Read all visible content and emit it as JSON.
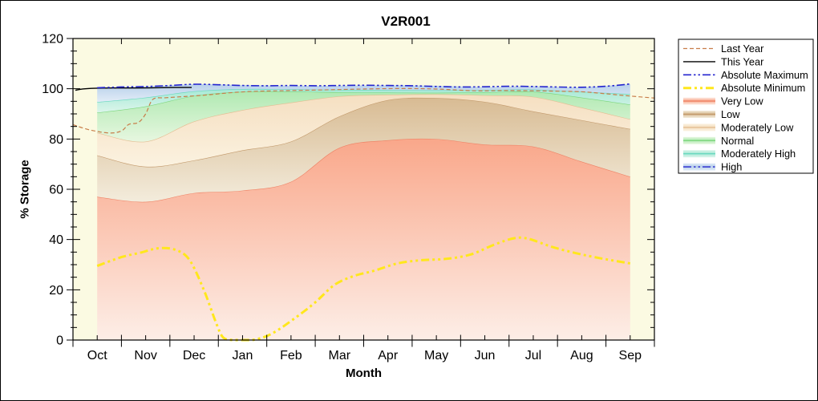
{
  "figure": {
    "title": "V2R001"
  },
  "axes": {
    "x_label": "Month",
    "y_label": "% Storage",
    "months": [
      "Oct",
      "Nov",
      "Dec",
      "Jan",
      "Feb",
      "Mar",
      "Apr",
      "May",
      "Jun",
      "Jul",
      "Aug",
      "Sep"
    ],
    "y_ticks": [
      0,
      20,
      40,
      60,
      80,
      100,
      120
    ],
    "y_minor_step": 5,
    "y_range": [
      0,
      120
    ],
    "plot_background": "#fbfae2"
  },
  "legend": {
    "items": [
      {
        "label": "Last Year",
        "kind": "line",
        "ref": "last_year"
      },
      {
        "label": "This Year",
        "kind": "line",
        "ref": "this_year"
      },
      {
        "label": "Absolute Maximum",
        "kind": "line",
        "ref": "abs_max"
      },
      {
        "label": "Absolute Minimum",
        "kind": "line",
        "ref": "abs_min"
      },
      {
        "label": "Very Low",
        "kind": "band",
        "ref": "very_low"
      },
      {
        "label": "Low",
        "kind": "band",
        "ref": "low"
      },
      {
        "label": "Moderately Low",
        "kind": "band",
        "ref": "mod_low"
      },
      {
        "label": "Normal",
        "kind": "band",
        "ref": "normal"
      },
      {
        "label": "Moderately High",
        "kind": "band",
        "ref": "mod_high"
      },
      {
        "label": "High",
        "kind": "band",
        "ref": "high"
      }
    ]
  },
  "chart_data": {
    "type": "area",
    "title": "V2R001",
    "xlabel": "Month",
    "ylabel": "% Storage",
    "x_categories": [
      "Oct",
      "Nov",
      "Dec",
      "Jan",
      "Feb",
      "Mar",
      "Apr",
      "May",
      "Jun",
      "Jul",
      "Aug",
      "Sep"
    ],
    "ylim": [
      0,
      120
    ],
    "grid": false,
    "legend_position": "outside-right",
    "bands_note": "stacked percentile zones; values are the TOP of each zone (% storage) at each month center, zones span Oct..Sep",
    "bands": [
      {
        "id": "very_low",
        "label": "Very Low",
        "line_color": "#ee8366",
        "fill_color": "#f9a78a",
        "fade_color": "#fdeee7",
        "values": [
          57,
          55,
          58.5,
          59.5,
          63,
          76.5,
          79.5,
          80,
          77.8,
          77,
          71,
          65
        ]
      },
      {
        "id": "low",
        "label": "Low",
        "line_color": "#c2996b",
        "fill_color": "#d8bb93",
        "fade_color": "#f3ecdc",
        "values": [
          73.5,
          69,
          71.5,
          75.5,
          79,
          89,
          95.5,
          96.3,
          94.8,
          91,
          87.5,
          84
        ]
      },
      {
        "id": "mod_low",
        "label": "Moderately Low",
        "line_color": "#e4bd92",
        "fill_color": "#f5dfc1",
        "fade_color": "#fbf2e0",
        "values": [
          82.5,
          79,
          87,
          91.5,
          94.5,
          97,
          97.6,
          97.8,
          97.4,
          96.8,
          92.5,
          87.9
        ]
      },
      {
        "id": "normal",
        "label": "Normal",
        "line_color": "#7dd67d",
        "fill_color": "#b0e9b2",
        "fade_color": "#e7f7e0",
        "values": [
          90.5,
          93,
          97.2,
          98.8,
          98.9,
          98.6,
          98.5,
          98.4,
          98.6,
          98.8,
          96.5,
          93.7
        ]
      },
      {
        "id": "mod_high",
        "label": "Moderately High",
        "line_color": "#69d8bf",
        "fill_color": "#a6e9d5",
        "fade_color": "#dcf5eb",
        "values": [
          94.7,
          96.5,
          99,
          99.9,
          99.8,
          99.6,
          99.5,
          99.4,
          99.5,
          99.7,
          98.8,
          97.9
        ]
      },
      {
        "id": "high",
        "label": "High",
        "line_color": null,
        "fill_color": "#b8d0ea",
        "fade_color": "#e2ecf7",
        "values": [
          100.4,
          100.9,
          101.8,
          101.5,
          101.2,
          101.2,
          101.4,
          101.2,
          100.7,
          101,
          100.6,
          101.9
        ]
      }
    ],
    "lines_note": "points are [month_position, percent]; 0 = start of Oct, 12 = end of Sep, month centers at k+0.5",
    "lines": [
      {
        "id": "last_year",
        "label": "Last Year",
        "color": "#c87e4a",
        "width": 1.2,
        "dash": "5 3",
        "points": [
          [
            0,
            85.7
          ],
          [
            0.35,
            83.6
          ],
          [
            0.75,
            82.4
          ],
          [
            1.0,
            83.2
          ],
          [
            1.15,
            85.8
          ],
          [
            1.35,
            86.6
          ],
          [
            1.5,
            90
          ],
          [
            1.65,
            95.8
          ],
          [
            1.9,
            96.4
          ],
          [
            2.3,
            96.9
          ],
          [
            2.8,
            97.6
          ],
          [
            3.3,
            98.5
          ],
          [
            3.8,
            99
          ],
          [
            4.5,
            99.3
          ],
          [
            5.3,
            99.6
          ],
          [
            6,
            99.9
          ],
          [
            6.8,
            100.1
          ],
          [
            7.5,
            99.9
          ],
          [
            8.3,
            99.2
          ],
          [
            9,
            99.3
          ],
          [
            9.8,
            99.1
          ],
          [
            10.5,
            98.8
          ],
          [
            11,
            98
          ],
          [
            11.5,
            97.1
          ],
          [
            12,
            96.3
          ]
        ]
      },
      {
        "id": "this_year",
        "label": "This Year",
        "color": "#000000",
        "width": 1.4,
        "dash": null,
        "points": [
          [
            0.05,
            99.4
          ],
          [
            0.2,
            99.9
          ],
          [
            0.45,
            100.2
          ],
          [
            0.8,
            100.3
          ],
          [
            1.3,
            100.3
          ],
          [
            1.7,
            100.4
          ],
          [
            2.1,
            100.5
          ],
          [
            2.45,
            100.5
          ]
        ]
      },
      {
        "id": "abs_max",
        "label": "Absolute Maximum",
        "color": "#2424cf",
        "width": 1.6,
        "dash": "10 3 2.5 3 2.5 3",
        "points": [
          [
            0.5,
            100.4
          ],
          [
            1,
            100.7
          ],
          [
            1.5,
            100.9
          ],
          [
            2,
            101.3
          ],
          [
            2.5,
            101.8
          ],
          [
            3,
            101.6
          ],
          [
            3.5,
            101.3
          ],
          [
            4,
            101.2
          ],
          [
            4.5,
            101.3
          ],
          [
            5,
            101.2
          ],
          [
            5.5,
            101.3
          ],
          [
            6,
            101.4
          ],
          [
            6.5,
            101.3
          ],
          [
            7,
            101.2
          ],
          [
            7.5,
            100.9
          ],
          [
            8,
            100.7
          ],
          [
            8.5,
            100.8
          ],
          [
            9,
            101
          ],
          [
            9.5,
            100.9
          ],
          [
            10,
            100.7
          ],
          [
            10.5,
            100.6
          ],
          [
            11,
            101
          ],
          [
            11.5,
            101.9
          ]
        ]
      },
      {
        "id": "abs_min",
        "label": "Absolute Minimum",
        "color": "#ffe71c",
        "width": 3,
        "dash": "10 4 3 4 3 4",
        "points": [
          [
            0.5,
            29.5
          ],
          [
            1,
            33
          ],
          [
            1.4,
            34.8
          ],
          [
            1.75,
            36.5
          ],
          [
            2.1,
            36
          ],
          [
            2.4,
            32
          ],
          [
            2.7,
            20
          ],
          [
            2.95,
            7
          ],
          [
            3.1,
            1
          ],
          [
            3.3,
            0
          ],
          [
            3.7,
            0
          ],
          [
            4.1,
            2.5
          ],
          [
            4.6,
            9
          ],
          [
            5,
            15
          ],
          [
            5.4,
            22
          ],
          [
            5.8,
            25.5
          ],
          [
            6.2,
            27.5
          ],
          [
            6.7,
            30.5
          ],
          [
            7.2,
            31.8
          ],
          [
            7.7,
            32.3
          ],
          [
            8.2,
            34
          ],
          [
            8.7,
            38
          ],
          [
            9.1,
            40.5
          ],
          [
            9.4,
            40.3
          ],
          [
            9.9,
            37
          ],
          [
            10.4,
            34.5
          ],
          [
            10.9,
            32.5
          ],
          [
            11.5,
            30.5
          ]
        ]
      }
    ]
  }
}
